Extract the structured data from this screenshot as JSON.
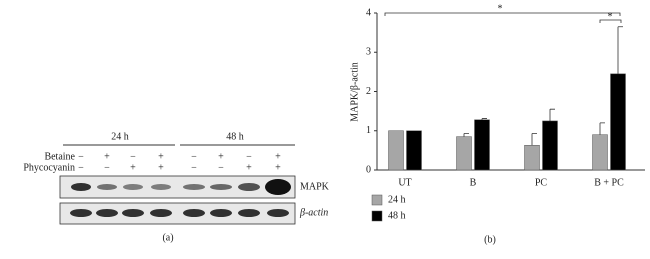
{
  "panel_a": {
    "time_labels": [
      "24 h",
      "48 h"
    ],
    "row_labels": [
      "Betaine",
      "Phycocyanin"
    ],
    "betaine_signs": [
      "−",
      "+",
      "−",
      "+",
      "−",
      "+",
      "−",
      "+"
    ],
    "phycocyanin_signs": [
      "−",
      "−",
      "+",
      "+",
      "−",
      "−",
      "+",
      "+"
    ],
    "blot_labels": [
      "MAPK",
      "β-actin"
    ],
    "caption": "(a)"
  },
  "chart_data": {
    "type": "bar",
    "y_label": "MAPK/β-actin",
    "categories": [
      "UT",
      "B",
      "PC",
      "B + PC"
    ],
    "series": [
      {
        "name": "24 h",
        "color": "#a6a6a6",
        "values": [
          1.0,
          0.85,
          0.63,
          0.9
        ],
        "errors": [
          0,
          0.08,
          0.3,
          0.3
        ]
      },
      {
        "name": "48 h",
        "color": "#000000",
        "values": [
          1.0,
          1.28,
          1.25,
          2.45
        ],
        "errors": [
          0,
          0.03,
          0.3,
          1.2
        ]
      }
    ],
    "ylim": [
      0,
      4
    ],
    "yticks": [
      0,
      1,
      2,
      3,
      4
    ],
    "annotations": [
      "*",
      "*"
    ],
    "caption": "(b)"
  }
}
